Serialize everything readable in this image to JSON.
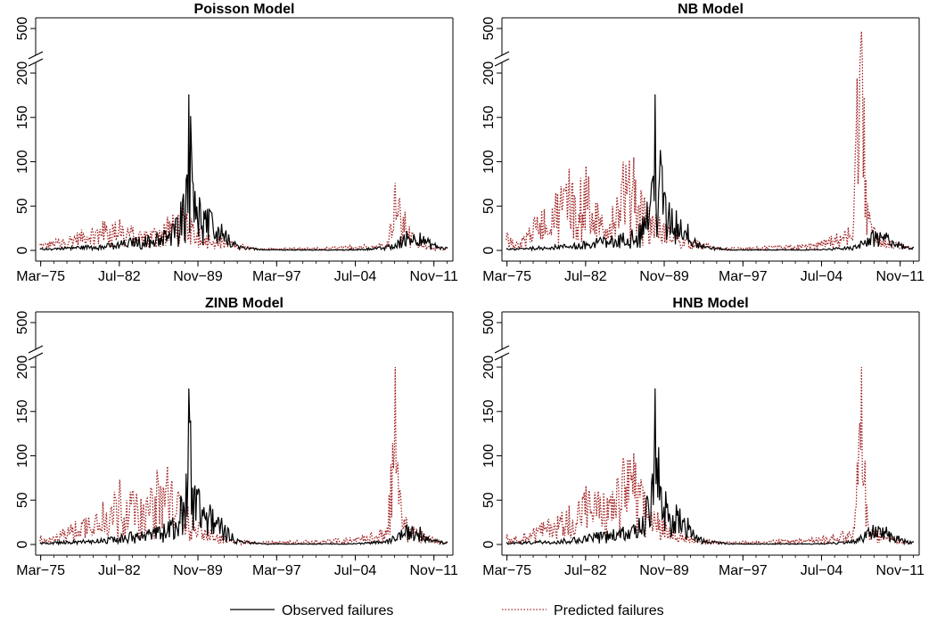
{
  "chart_data": [
    {
      "type": "line",
      "title": "Poisson Model",
      "x_tick_labels": [
        "Mar−75",
        "Jul−82",
        "Nov−89",
        "Mar−97",
        "Jul−04",
        "Nov−11"
      ],
      "y_tick_labels": [
        "0",
        "50",
        "100",
        "150",
        "200",
        "500"
      ],
      "y_axis_break": [
        200,
        500
      ],
      "series": [
        {
          "name": "Observed failures",
          "style": "solid",
          "color": "#000000",
          "peaks": [
            [
              1975.2,
              2
            ],
            [
              1981.5,
              8
            ],
            [
              1983.5,
              14
            ],
            [
              1986.0,
              20
            ],
            [
              1987.5,
              30
            ],
            [
              1988.2,
              55
            ],
            [
              1988.7,
              80
            ],
            [
              1989.0,
              176
            ],
            [
              1990.0,
              60
            ],
            [
              1991.0,
              45
            ],
            [
              1992.0,
              30
            ],
            [
              1993.5,
              6
            ],
            [
              1996.0,
              1
            ],
            [
              2004.0,
              1
            ],
            [
              2007.5,
              5
            ],
            [
              2009.3,
              22
            ],
            [
              2010.5,
              20
            ],
            [
              2012.5,
              4
            ]
          ]
        },
        {
          "name": "Predicted failures",
          "style": "dotted",
          "color": "#a02020",
          "peaks": [
            [
              1975.2,
              8
            ],
            [
              1976.0,
              10
            ],
            [
              1981.0,
              33
            ],
            [
              1982.5,
              35
            ],
            [
              1985.0,
              22
            ],
            [
              1987.0,
              38
            ],
            [
              1988.5,
              50
            ],
            [
              1990.0,
              25
            ],
            [
              1992.0,
              15
            ],
            [
              1995.0,
              3
            ],
            [
              2000.0,
              3
            ],
            [
              2004.0,
              5
            ],
            [
              2007.5,
              10
            ],
            [
              2008.2,
              76
            ],
            [
              2010.0,
              15
            ],
            [
              2012.5,
              3
            ]
          ]
        }
      ]
    },
    {
      "type": "line",
      "title": "NB Model",
      "x_tick_labels": [
        "Mar−75",
        "Jul−82",
        "Nov−89",
        "Mar−97",
        "Jul−04",
        "Nov−11"
      ],
      "y_tick_labels": [
        "0",
        "50",
        "100",
        "150",
        "200",
        "500"
      ],
      "y_axis_break": [
        200,
        500
      ],
      "series": [
        {
          "name": "Observed failures",
          "style": "solid",
          "color": "#000000",
          "peaks": [
            [
              1975.2,
              2
            ],
            [
              1981.5,
              8
            ],
            [
              1983.5,
              14
            ],
            [
              1986.0,
              20
            ],
            [
              1987.5,
              30
            ],
            [
              1988.2,
              55
            ],
            [
              1988.7,
              80
            ],
            [
              1989.0,
              176
            ],
            [
              1990.0,
              60
            ],
            [
              1991.0,
              45
            ],
            [
              1992.0,
              30
            ],
            [
              1993.5,
              6
            ],
            [
              1996.0,
              1
            ],
            [
              2004.0,
              1
            ],
            [
              2007.5,
              5
            ],
            [
              2009.3,
              22
            ],
            [
              2010.5,
              20
            ],
            [
              2012.5,
              4
            ]
          ]
        },
        {
          "name": "Predicted failures",
          "style": "dotted",
          "color": "#a02020",
          "peaks": [
            [
              1975.2,
              20
            ],
            [
              1976.0,
              8
            ],
            [
              1981.0,
              92
            ],
            [
              1982.5,
              95
            ],
            [
              1984.0,
              40
            ],
            [
              1985.0,
              50
            ],
            [
              1986.0,
              100
            ],
            [
              1987.0,
              105
            ],
            [
              1988.0,
              60
            ],
            [
              1990.0,
              30
            ],
            [
              1992.0,
              15
            ],
            [
              1995.0,
              3
            ],
            [
              2000.0,
              5
            ],
            [
              2004.0,
              8
            ],
            [
              2007.5,
              30
            ],
            [
              2008.2,
              480
            ],
            [
              2008.6,
              80
            ],
            [
              2010.0,
              15
            ],
            [
              2012.5,
              5
            ]
          ]
        }
      ]
    },
    {
      "type": "line",
      "title": "ZINB Model",
      "x_tick_labels": [
        "Mar−75",
        "Jul−82",
        "Nov−89",
        "Mar−97",
        "Jul−04",
        "Nov−11"
      ],
      "y_tick_labels": [
        "0",
        "50",
        "100",
        "150",
        "200",
        "500"
      ],
      "y_axis_break": [
        200,
        500
      ],
      "series": [
        {
          "name": "Observed failures",
          "style": "solid",
          "color": "#000000",
          "peaks": [
            [
              1975.2,
              2
            ],
            [
              1981.5,
              8
            ],
            [
              1983.5,
              14
            ],
            [
              1986.0,
              20
            ],
            [
              1987.5,
              30
            ],
            [
              1988.2,
              55
            ],
            [
              1988.7,
              80
            ],
            [
              1989.0,
              176
            ],
            [
              1990.0,
              60
            ],
            [
              1991.0,
              45
            ],
            [
              1992.0,
              30
            ],
            [
              1993.5,
              6
            ],
            [
              1996.0,
              1
            ],
            [
              2004.0,
              1
            ],
            [
              2007.5,
              5
            ],
            [
              2009.3,
              22
            ],
            [
              2010.5,
              20
            ],
            [
              2012.5,
              4
            ]
          ]
        },
        {
          "name": "Predicted failures",
          "style": "dotted",
          "color": "#a02020",
          "peaks": [
            [
              1975.2,
              10
            ],
            [
              1976.0,
              8
            ],
            [
              1981.0,
              48
            ],
            [
              1982.5,
              73
            ],
            [
              1985.0,
              50
            ],
            [
              1986.0,
              84
            ],
            [
              1987.0,
              88
            ],
            [
              1988.0,
              60
            ],
            [
              1990.0,
              25
            ],
            [
              1992.0,
              10
            ],
            [
              1995.0,
              3
            ],
            [
              2000.0,
              5
            ],
            [
              2004.0,
              8
            ],
            [
              2007.5,
              20
            ],
            [
              2008.2,
              200
            ],
            [
              2008.8,
              38
            ],
            [
              2010.0,
              20
            ],
            [
              2012.5,
              3
            ]
          ]
        }
      ]
    },
    {
      "type": "line",
      "title": "HNB Model",
      "x_tick_labels": [
        "Mar−75",
        "Jul−82",
        "Nov−89",
        "Mar−97",
        "Jul−04",
        "Nov−11"
      ],
      "y_tick_labels": [
        "0",
        "50",
        "100",
        "150",
        "200",
        "500"
      ],
      "y_axis_break": [
        200,
        500
      ],
      "series": [
        {
          "name": "Observed failures",
          "style": "solid",
          "color": "#000000",
          "peaks": [
            [
              1975.2,
              2
            ],
            [
              1981.5,
              8
            ],
            [
              1983.5,
              14
            ],
            [
              1986.0,
              20
            ],
            [
              1987.5,
              30
            ],
            [
              1988.2,
              55
            ],
            [
              1988.7,
              80
            ],
            [
              1989.0,
              176
            ],
            [
              1990.0,
              60
            ],
            [
              1991.0,
              45
            ],
            [
              1992.0,
              30
            ],
            [
              1993.5,
              6
            ],
            [
              1996.0,
              1
            ],
            [
              2004.0,
              1
            ],
            [
              2007.5,
              5
            ],
            [
              2009.3,
              22
            ],
            [
              2010.5,
              20
            ],
            [
              2012.5,
              4
            ]
          ]
        },
        {
          "name": "Predicted failures",
          "style": "dotted",
          "color": "#a02020",
          "peaks": [
            [
              1975.2,
              10
            ],
            [
              1976.0,
              8
            ],
            [
              1981.0,
              44
            ],
            [
              1982.5,
              66
            ],
            [
              1985.0,
              60
            ],
            [
              1986.0,
              98
            ],
            [
              1987.0,
              103
            ],
            [
              1988.0,
              60
            ],
            [
              1990.0,
              25
            ],
            [
              1992.0,
              10
            ],
            [
              1995.0,
              3
            ],
            [
              2000.0,
              5
            ],
            [
              2004.0,
              8
            ],
            [
              2007.5,
              20
            ],
            [
              2008.2,
              200
            ],
            [
              2008.8,
              25
            ],
            [
              2010.0,
              15
            ],
            [
              2012.5,
              3
            ]
          ]
        }
      ]
    }
  ],
  "legend": {
    "placement": "bottom",
    "items": [
      {
        "label": "Observed failures",
        "style": "solid",
        "color": "#000000"
      },
      {
        "label": "Predicted failures",
        "style": "dotted",
        "color": "#a02020"
      }
    ]
  }
}
